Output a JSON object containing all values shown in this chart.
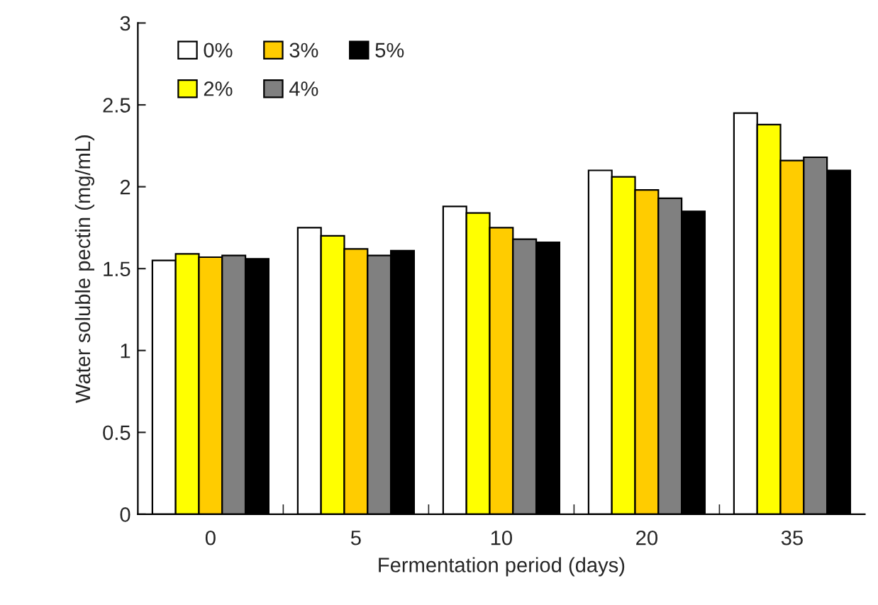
{
  "chart_data": {
    "type": "bar",
    "xlabel": "Fermentation period (days)",
    "ylabel": "Water soluble pectin (mg/mL)",
    "categories": [
      "0",
      "5",
      "10",
      "20",
      "35"
    ],
    "series": [
      {
        "name": "0%",
        "color": "#ffffff",
        "values": [
          1.55,
          1.75,
          1.88,
          2.1,
          2.45
        ]
      },
      {
        "name": "2%",
        "color": "#ffff00",
        "values": [
          1.59,
          1.7,
          1.84,
          2.06,
          2.38
        ]
      },
      {
        "name": "3%",
        "color": "#ffcc00",
        "values": [
          1.57,
          1.62,
          1.75,
          1.98,
          2.16
        ]
      },
      {
        "name": "4%",
        "color": "#808080",
        "values": [
          1.58,
          1.58,
          1.68,
          1.93,
          2.18
        ]
      },
      {
        "name": "5%",
        "color": "#000000",
        "values": [
          1.56,
          1.61,
          1.66,
          1.85,
          2.1
        ]
      }
    ],
    "ylim": [
      0,
      3
    ],
    "yticks": [
      0,
      0.5,
      1,
      1.5,
      2,
      2.5,
      3
    ],
    "grid": false,
    "legend": "top left"
  }
}
